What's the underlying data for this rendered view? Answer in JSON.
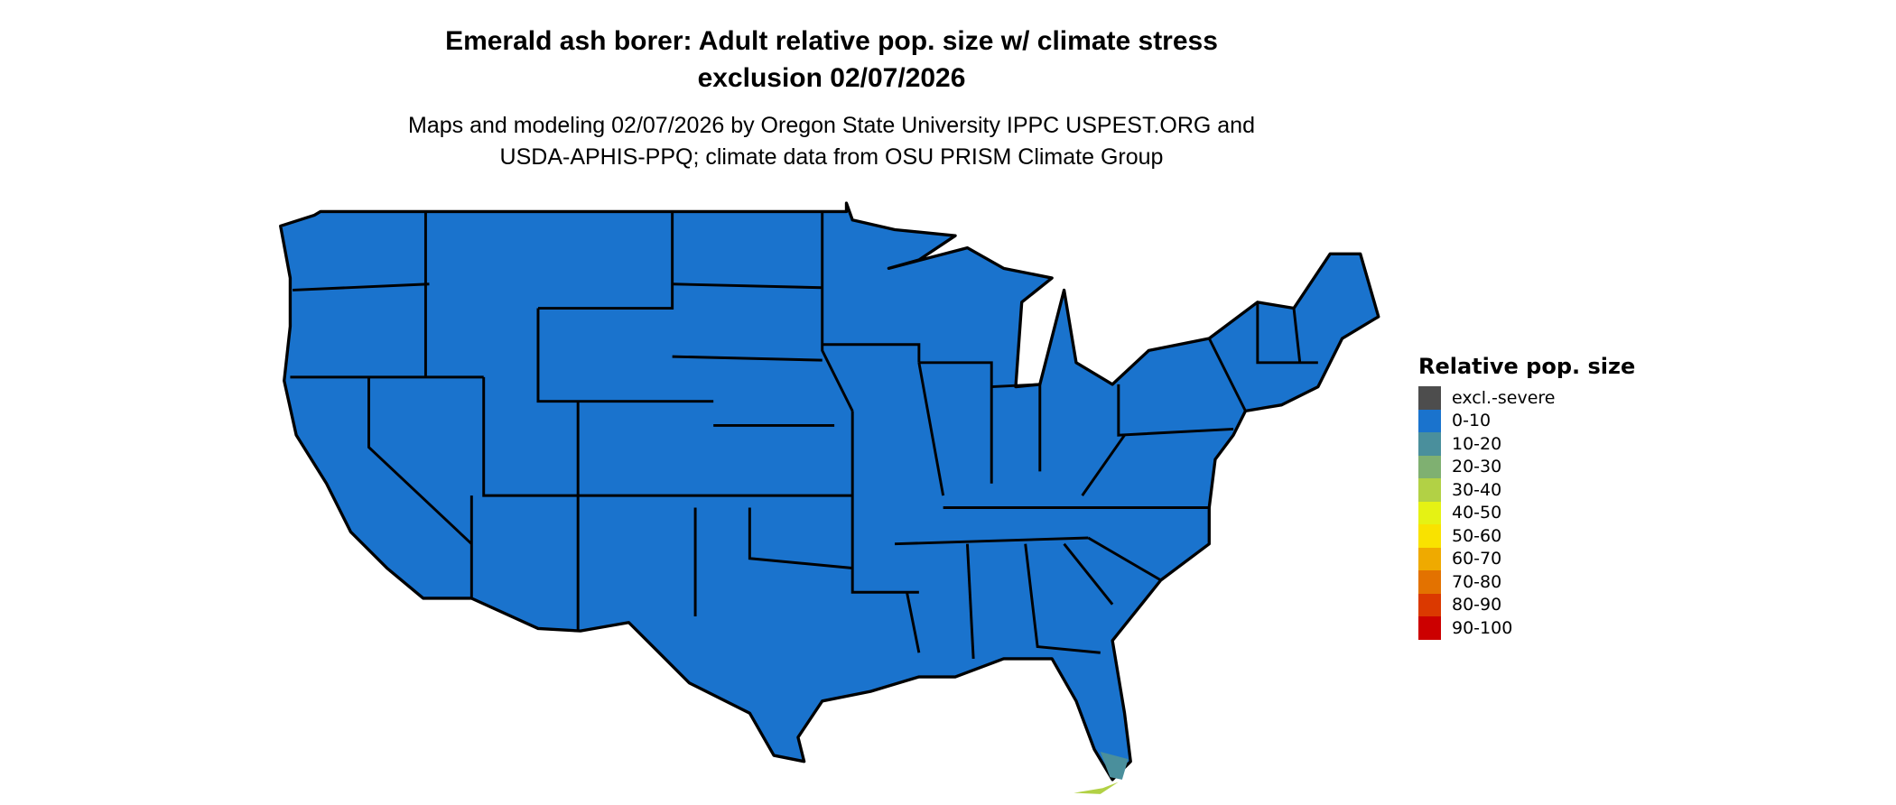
{
  "title": {
    "line1": "Emerald ash borer: Adult relative pop. size w/ climate stress",
    "line2": "exclusion 02/07/2026"
  },
  "subtitle": {
    "line1": "Maps and modeling 02/07/2026 by Oregon State University IPPC USPEST.ORG and",
    "line2": "USDA-APHIS-PPQ; climate data from OSU PRISM Climate Group"
  },
  "map": {
    "region": "Contiguous United States",
    "dominant_class": "0-10",
    "fill_color": "#1A73CD",
    "border_color": "#000000",
    "south_florida_classes": [
      "10-20",
      "30-40"
    ]
  },
  "legend": {
    "title": "Relative pop. size",
    "items": [
      {
        "label": "excl.-severe",
        "color": "#4D4D4D"
      },
      {
        "label": "0-10",
        "color": "#1A73CD"
      },
      {
        "label": "10-20",
        "color": "#4A8F9C"
      },
      {
        "label": "20-30",
        "color": "#7FB071"
      },
      {
        "label": "30-40",
        "color": "#B2D145"
      },
      {
        "label": "40-50",
        "color": "#E5F214"
      },
      {
        "label": "50-60",
        "color": "#F9E200"
      },
      {
        "label": "60-70",
        "color": "#EFAA00"
      },
      {
        "label": "70-80",
        "color": "#E37200"
      },
      {
        "label": "80-90",
        "color": "#DB3900"
      },
      {
        "label": "90-100",
        "color": "#CC0000"
      }
    ]
  }
}
